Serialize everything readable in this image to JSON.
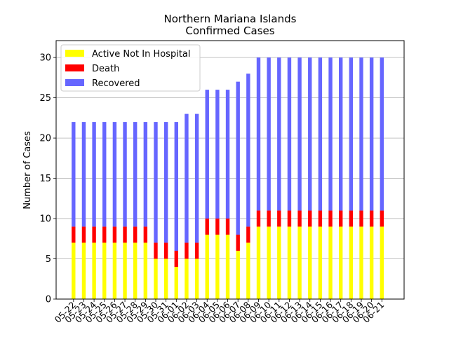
{
  "chart_data": {
    "type": "bar",
    "stacked": true,
    "title": "Northern Mariana Islands",
    "subtitle": "Confirmed Cases",
    "xlabel": "",
    "ylabel": "Number of Cases",
    "ylim": [
      0,
      32.1
    ],
    "yticks": [
      0,
      5,
      10,
      15,
      20,
      25,
      30
    ],
    "grid": "y",
    "legend": "top-left",
    "categories": [
      "05-22",
      "05-23",
      "05-24",
      "05-25",
      "05-26",
      "05-27",
      "05-28",
      "05-29",
      "05-30",
      "05-31",
      "06-01",
      "06-02",
      "06-03",
      "06-04",
      "06-05",
      "06-06",
      "06-07",
      "06-08",
      "06-09",
      "06-10",
      "06-11",
      "06-12",
      "06-13",
      "06-14",
      "06-15",
      "06-16",
      "06-17",
      "06-18",
      "06-19",
      "06-20",
      "06-21"
    ],
    "series": [
      {
        "name": "Active Not In Hospital",
        "color": "#ffff00",
        "values": [
          7,
          7,
          7,
          7,
          7,
          7,
          7,
          7,
          5,
          5,
          4,
          5,
          5,
          8,
          8,
          8,
          6,
          7,
          9,
          9,
          9,
          9,
          9,
          9,
          9,
          9,
          9,
          9,
          9,
          9,
          9
        ]
      },
      {
        "name": "Death",
        "color": "#ff0000",
        "values": [
          2,
          2,
          2,
          2,
          2,
          2,
          2,
          2,
          2,
          2,
          2,
          2,
          2,
          2,
          2,
          2,
          2,
          2,
          2,
          2,
          2,
          2,
          2,
          2,
          2,
          2,
          2,
          2,
          2,
          2,
          2
        ]
      },
      {
        "name": "Recovered",
        "color": "#6666ff",
        "values": [
          13,
          13,
          13,
          13,
          13,
          13,
          13,
          13,
          15,
          15,
          16,
          16,
          16,
          16,
          16,
          16,
          19,
          19,
          19,
          19,
          19,
          19,
          19,
          19,
          19,
          19,
          19,
          19,
          19,
          19,
          19
        ]
      }
    ]
  }
}
